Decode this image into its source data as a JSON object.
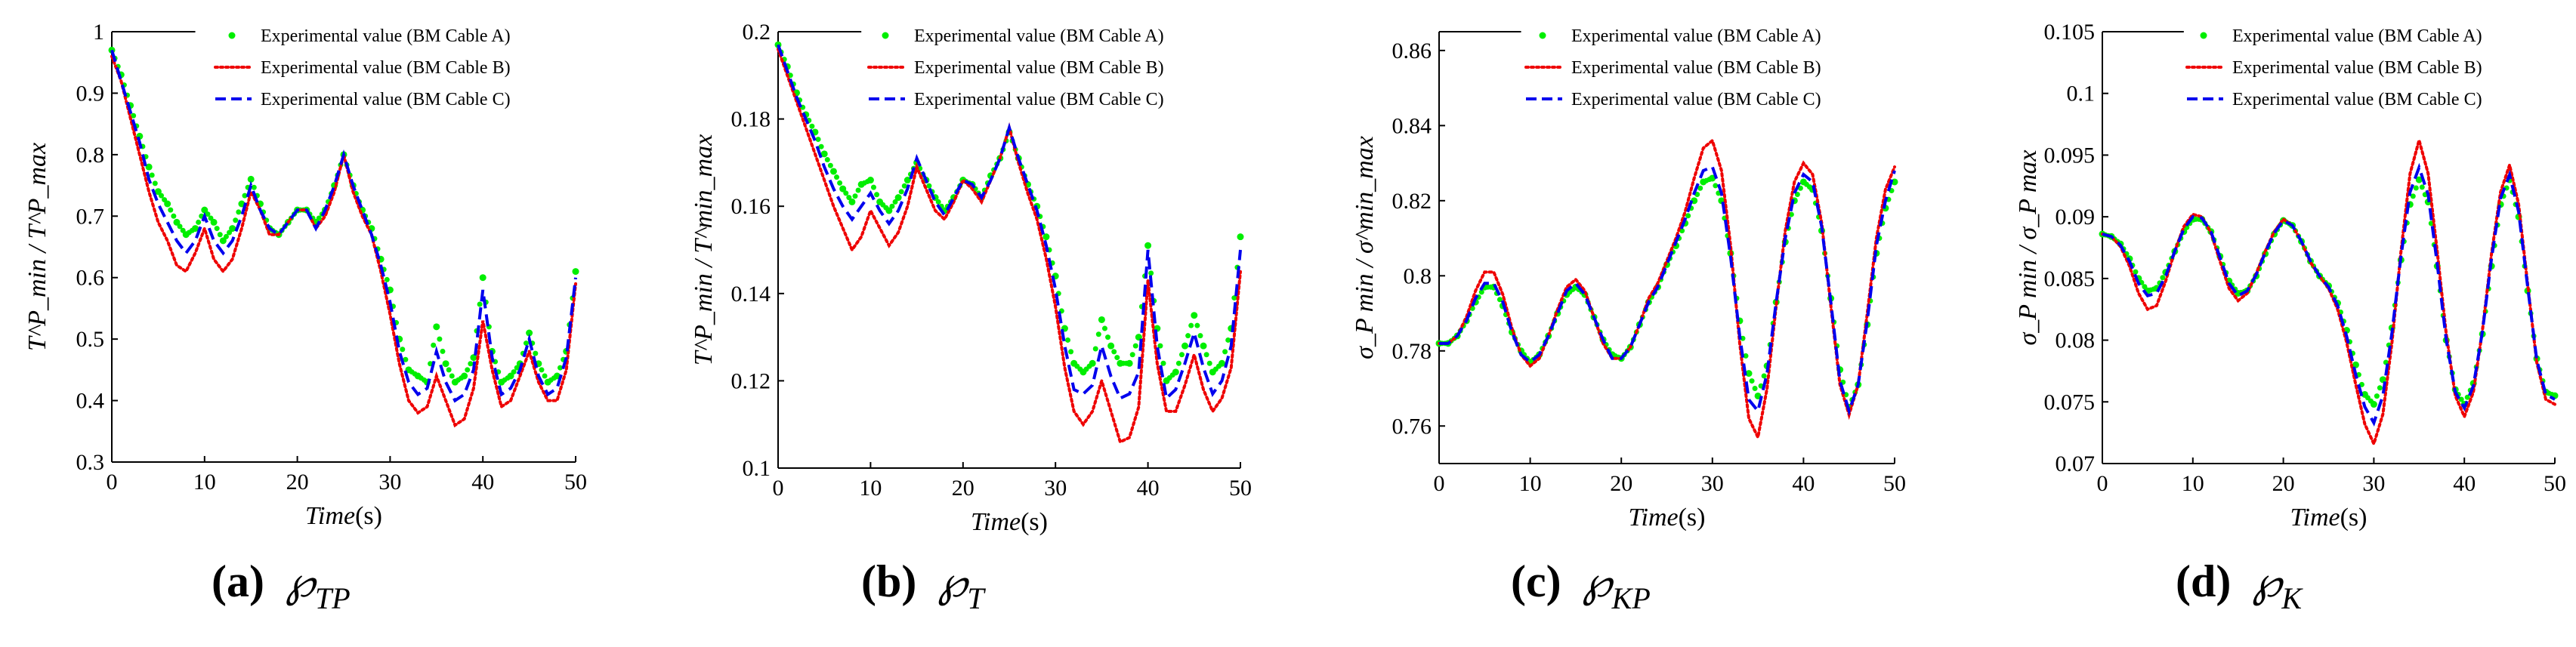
{
  "figure": {
    "panels": [
      {
        "caption_letter": "(a)",
        "caption_symbol": "℘",
        "caption_subscript": "TP"
      },
      {
        "caption_letter": "(b)",
        "caption_symbol": "℘",
        "caption_subscript": "T"
      },
      {
        "caption_letter": "(c)",
        "caption_symbol": "℘",
        "caption_subscript": "KP"
      },
      {
        "caption_letter": "(d)",
        "caption_symbol": "℘",
        "caption_subscript": "K"
      }
    ]
  },
  "colors": {
    "cable_a": "#00ee00",
    "cable_b": "#ee0000",
    "cable_c": "#0000ee"
  },
  "chart_data": [
    {
      "type": "line",
      "xlabel": "Time(s)",
      "ylabel": "T^P_min / T^P_max",
      "xlim": [
        0,
        50
      ],
      "ylim": [
        0.3,
        1.0
      ],
      "xticks": [
        "0",
        "10",
        "20",
        "30",
        "40",
        "50"
      ],
      "yticks": [
        "0.3",
        "0.4",
        "0.5",
        "0.6",
        "0.7",
        "0.8",
        "0.9",
        "1"
      ],
      "legend_position": "top-right",
      "x": [
        0,
        1,
        2,
        3,
        4,
        5,
        6,
        7,
        8,
        9,
        10,
        11,
        12,
        13,
        14,
        15,
        16,
        17,
        18,
        19,
        20,
        21,
        22,
        23,
        24,
        25,
        26,
        27,
        28,
        29,
        30,
        31,
        32,
        33,
        34,
        35,
        36,
        37,
        38,
        39,
        40,
        41,
        42,
        43,
        44,
        45,
        46,
        47,
        48,
        49,
        50
      ],
      "series": [
        {
          "name": "Experimental value (BM Cable A)",
          "style": "dotted-markers",
          "values": [
            0.97,
            0.93,
            0.88,
            0.83,
            0.78,
            0.74,
            0.72,
            0.69,
            0.67,
            0.68,
            0.71,
            0.69,
            0.66,
            0.68,
            0.72,
            0.76,
            0.72,
            0.68,
            0.67,
            0.69,
            0.71,
            0.71,
            0.69,
            0.71,
            0.75,
            0.8,
            0.75,
            0.71,
            0.68,
            0.63,
            0.58,
            0.5,
            0.45,
            0.44,
            0.43,
            0.52,
            0.46,
            0.43,
            0.44,
            0.47,
            0.6,
            0.48,
            0.43,
            0.44,
            0.46,
            0.51,
            0.46,
            0.43,
            0.44,
            0.48,
            0.61
          ]
        },
        {
          "name": "Experimental value (BM Cable B)",
          "style": "dotted",
          "values": [
            0.96,
            0.92,
            0.86,
            0.8,
            0.74,
            0.69,
            0.66,
            0.62,
            0.61,
            0.64,
            0.68,
            0.63,
            0.61,
            0.63,
            0.68,
            0.74,
            0.71,
            0.67,
            0.67,
            0.69,
            0.71,
            0.71,
            0.68,
            0.7,
            0.74,
            0.8,
            0.74,
            0.7,
            0.67,
            0.61,
            0.54,
            0.46,
            0.4,
            0.38,
            0.39,
            0.44,
            0.4,
            0.36,
            0.37,
            0.42,
            0.53,
            0.45,
            0.39,
            0.4,
            0.44,
            0.48,
            0.43,
            0.4,
            0.4,
            0.45,
            0.59
          ]
        },
        {
          "name": "Experimental value (BM Cable C)",
          "style": "dashed",
          "values": [
            0.97,
            0.92,
            0.87,
            0.82,
            0.76,
            0.72,
            0.69,
            0.66,
            0.64,
            0.66,
            0.7,
            0.66,
            0.64,
            0.66,
            0.7,
            0.75,
            0.71,
            0.68,
            0.67,
            0.69,
            0.71,
            0.71,
            0.68,
            0.71,
            0.75,
            0.8,
            0.75,
            0.71,
            0.67,
            0.62,
            0.56,
            0.48,
            0.43,
            0.41,
            0.42,
            0.48,
            0.43,
            0.4,
            0.41,
            0.45,
            0.58,
            0.47,
            0.41,
            0.42,
            0.45,
            0.5,
            0.44,
            0.41,
            0.42,
            0.47,
            0.6
          ]
        }
      ]
    },
    {
      "type": "line",
      "xlabel": "Time(s)",
      "ylabel": "T^P_min / T^min_max",
      "xlim": [
        0,
        50
      ],
      "ylim": [
        0.1,
        0.2
      ],
      "xticks": [
        "0",
        "10",
        "20",
        "30",
        "40",
        "50"
      ],
      "yticks": [
        "0.1",
        "0.12",
        "0.14",
        "0.16",
        "0.18",
        "0.2"
      ],
      "legend_position": "top-right",
      "x": [
        0,
        1,
        2,
        3,
        4,
        5,
        6,
        7,
        8,
        9,
        10,
        11,
        12,
        13,
        14,
        15,
        16,
        17,
        18,
        19,
        20,
        21,
        22,
        23,
        24,
        25,
        26,
        27,
        28,
        29,
        30,
        31,
        32,
        33,
        34,
        35,
        36,
        37,
        38,
        39,
        40,
        41,
        42,
        43,
        44,
        45,
        46,
        47,
        48,
        49,
        50
      ],
      "series": [
        {
          "name": "Experimental value (BM Cable A)",
          "style": "dotted-markers",
          "values": [
            0.197,
            0.192,
            0.186,
            0.181,
            0.177,
            0.172,
            0.168,
            0.164,
            0.161,
            0.165,
            0.166,
            0.161,
            0.159,
            0.162,
            0.166,
            0.17,
            0.166,
            0.162,
            0.159,
            0.162,
            0.166,
            0.165,
            0.162,
            0.167,
            0.171,
            0.177,
            0.171,
            0.165,
            0.16,
            0.153,
            0.144,
            0.132,
            0.124,
            0.122,
            0.124,
            0.134,
            0.128,
            0.124,
            0.124,
            0.13,
            0.151,
            0.132,
            0.12,
            0.122,
            0.128,
            0.135,
            0.128,
            0.122,
            0.124,
            0.132,
            0.153
          ]
        },
        {
          "name": "Experimental value (BM Cable B)",
          "style": "dotted",
          "values": [
            0.196,
            0.19,
            0.184,
            0.178,
            0.172,
            0.166,
            0.16,
            0.155,
            0.15,
            0.153,
            0.159,
            0.155,
            0.151,
            0.154,
            0.16,
            0.169,
            0.164,
            0.159,
            0.157,
            0.161,
            0.166,
            0.164,
            0.161,
            0.166,
            0.171,
            0.178,
            0.17,
            0.163,
            0.157,
            0.148,
            0.137,
            0.123,
            0.113,
            0.11,
            0.113,
            0.12,
            0.113,
            0.106,
            0.107,
            0.114,
            0.143,
            0.124,
            0.113,
            0.113,
            0.119,
            0.126,
            0.118,
            0.113,
            0.116,
            0.123,
            0.145
          ]
        },
        {
          "name": "Experimental value (BM Cable C)",
          "style": "dashed",
          "values": [
            0.197,
            0.191,
            0.185,
            0.18,
            0.175,
            0.169,
            0.164,
            0.16,
            0.157,
            0.16,
            0.163,
            0.159,
            0.156,
            0.159,
            0.164,
            0.171,
            0.166,
            0.161,
            0.158,
            0.162,
            0.166,
            0.165,
            0.162,
            0.166,
            0.171,
            0.178,
            0.171,
            0.165,
            0.159,
            0.151,
            0.141,
            0.128,
            0.118,
            0.117,
            0.119,
            0.128,
            0.121,
            0.116,
            0.117,
            0.122,
            0.15,
            0.128,
            0.116,
            0.118,
            0.124,
            0.131,
            0.123,
            0.117,
            0.12,
            0.128,
            0.15
          ]
        }
      ]
    },
    {
      "type": "line",
      "xlabel": "Time(s)",
      "ylabel": "σ_P min / σ^min_max",
      "xlim": [
        0,
        50
      ],
      "ylim": [
        0.75,
        0.865
      ],
      "xticks": [
        "0",
        "10",
        "20",
        "30",
        "40",
        "50"
      ],
      "yticks": [
        "0.76",
        "0.78",
        "0.8",
        "0.82",
        "0.84",
        "0.86"
      ],
      "legend_position": "top-right",
      "x": [
        0,
        1,
        2,
        3,
        4,
        5,
        6,
        7,
        8,
        9,
        10,
        11,
        12,
        13,
        14,
        15,
        16,
        17,
        18,
        19,
        20,
        21,
        22,
        23,
        24,
        25,
        26,
        27,
        28,
        29,
        30,
        31,
        32,
        33,
        34,
        35,
        36,
        37,
        38,
        39,
        40,
        41,
        42,
        43,
        44,
        45,
        46,
        47,
        48,
        49,
        50
      ],
      "series": [
        {
          "name": "Experimental value (BM Cable A)",
          "style": "dotted-markers",
          "values": [
            0.782,
            0.782,
            0.784,
            0.788,
            0.793,
            0.797,
            0.797,
            0.792,
            0.785,
            0.78,
            0.777,
            0.779,
            0.784,
            0.79,
            0.795,
            0.797,
            0.795,
            0.789,
            0.783,
            0.779,
            0.778,
            0.781,
            0.787,
            0.793,
            0.797,
            0.803,
            0.808,
            0.814,
            0.82,
            0.825,
            0.826,
            0.82,
            0.806,
            0.788,
            0.774,
            0.768,
            0.776,
            0.793,
            0.809,
            0.82,
            0.825,
            0.823,
            0.812,
            0.794,
            0.775,
            0.765,
            0.771,
            0.787,
            0.806,
            0.818,
            0.825
          ]
        },
        {
          "name": "Experimental value (BM Cable B)",
          "style": "dotted",
          "values": [
            0.782,
            0.782,
            0.784,
            0.789,
            0.796,
            0.801,
            0.801,
            0.795,
            0.786,
            0.779,
            0.776,
            0.778,
            0.784,
            0.791,
            0.797,
            0.799,
            0.796,
            0.789,
            0.782,
            0.778,
            0.778,
            0.781,
            0.787,
            0.794,
            0.798,
            0.804,
            0.81,
            0.817,
            0.826,
            0.834,
            0.836,
            0.828,
            0.808,
            0.782,
            0.762,
            0.757,
            0.77,
            0.792,
            0.812,
            0.825,
            0.83,
            0.827,
            0.814,
            0.792,
            0.771,
            0.763,
            0.771,
            0.79,
            0.81,
            0.823,
            0.829
          ]
        },
        {
          "name": "Experimental value (BM Cable C)",
          "style": "dashed",
          "values": [
            0.782,
            0.782,
            0.784,
            0.788,
            0.794,
            0.798,
            0.798,
            0.793,
            0.785,
            0.779,
            0.777,
            0.779,
            0.784,
            0.79,
            0.796,
            0.798,
            0.795,
            0.789,
            0.783,
            0.778,
            0.778,
            0.781,
            0.787,
            0.793,
            0.797,
            0.803,
            0.809,
            0.815,
            0.822,
            0.828,
            0.829,
            0.822,
            0.805,
            0.784,
            0.767,
            0.764,
            0.774,
            0.793,
            0.81,
            0.822,
            0.827,
            0.825,
            0.813,
            0.793,
            0.772,
            0.764,
            0.771,
            0.788,
            0.808,
            0.82,
            0.828
          ]
        }
      ]
    },
    {
      "type": "line",
      "xlabel": "Time(s)",
      "ylabel": "σ_P min / σ_P max",
      "xlim": [
        0,
        50
      ],
      "ylim": [
        0.07,
        0.105
      ],
      "xticks": [
        "0",
        "10",
        "20",
        "30",
        "40",
        "50"
      ],
      "yticks": [
        "0.07",
        "0.075",
        "0.08",
        "0.085",
        "0.09",
        "0.095",
        "0.1",
        "0.105"
      ],
      "legend_position": "top-right",
      "x": [
        0,
        1,
        2,
        3,
        4,
        5,
        6,
        7,
        8,
        9,
        10,
        11,
        12,
        13,
        14,
        15,
        16,
        17,
        18,
        19,
        20,
        21,
        22,
        23,
        24,
        25,
        26,
        27,
        28,
        29,
        30,
        31,
        32,
        33,
        34,
        35,
        36,
        37,
        38,
        39,
        40,
        41,
        42,
        43,
        44,
        45,
        46,
        47,
        48,
        49,
        50
      ],
      "series": [
        {
          "name": "Experimental value (BM Cable A)",
          "style": "dotted-markers",
          "values": [
            0.0886,
            0.0884,
            0.0878,
            0.0866,
            0.085,
            0.084,
            0.0842,
            0.0855,
            0.0872,
            0.0888,
            0.0898,
            0.0898,
            0.0888,
            0.0868,
            0.0848,
            0.0838,
            0.084,
            0.0852,
            0.087,
            0.0886,
            0.0897,
            0.0893,
            0.088,
            0.0864,
            0.0852,
            0.0844,
            0.083,
            0.0808,
            0.078,
            0.0756,
            0.0748,
            0.0768,
            0.081,
            0.0865,
            0.091,
            0.093,
            0.0912,
            0.086,
            0.08,
            0.076,
            0.0748,
            0.0765,
            0.0805,
            0.086,
            0.091,
            0.093,
            0.09,
            0.084,
            0.0785,
            0.0758,
            0.0755
          ]
        },
        {
          "name": "Experimental value (BM Cable B)",
          "style": "dotted",
          "values": [
            0.0886,
            0.0884,
            0.0876,
            0.086,
            0.0838,
            0.0825,
            0.0828,
            0.0848,
            0.0872,
            0.0892,
            0.0902,
            0.09,
            0.0887,
            0.0864,
            0.0842,
            0.0832,
            0.0838,
            0.0854,
            0.0872,
            0.0888,
            0.0898,
            0.0893,
            0.088,
            0.0863,
            0.0852,
            0.0842,
            0.0825,
            0.0798,
            0.0764,
            0.0732,
            0.0716,
            0.074,
            0.0798,
            0.0872,
            0.0935,
            0.0962,
            0.0935,
            0.0872,
            0.0805,
            0.0755,
            0.0738,
            0.0758,
            0.0808,
            0.087,
            0.092,
            0.0942,
            0.091,
            0.0845,
            0.0782,
            0.0752,
            0.0748
          ]
        },
        {
          "name": "Experimental value (BM Cable C)",
          "style": "dashed",
          "values": [
            0.0886,
            0.0884,
            0.0877,
            0.0864,
            0.0846,
            0.0836,
            0.0838,
            0.0852,
            0.0872,
            0.089,
            0.09,
            0.0899,
            0.0888,
            0.0867,
            0.0846,
            0.0836,
            0.084,
            0.0853,
            0.0871,
            0.0887,
            0.0897,
            0.0893,
            0.088,
            0.0864,
            0.0852,
            0.0843,
            0.0828,
            0.0803,
            0.0772,
            0.0746,
            0.0733,
            0.0755,
            0.0806,
            0.0868,
            0.092,
            0.094,
            0.0918,
            0.0862,
            0.08,
            0.0758,
            0.0745,
            0.0763,
            0.0807,
            0.0866,
            0.0915,
            0.0934,
            0.0904,
            0.0843,
            0.0784,
            0.0756,
            0.0752
          ]
        }
      ]
    }
  ]
}
